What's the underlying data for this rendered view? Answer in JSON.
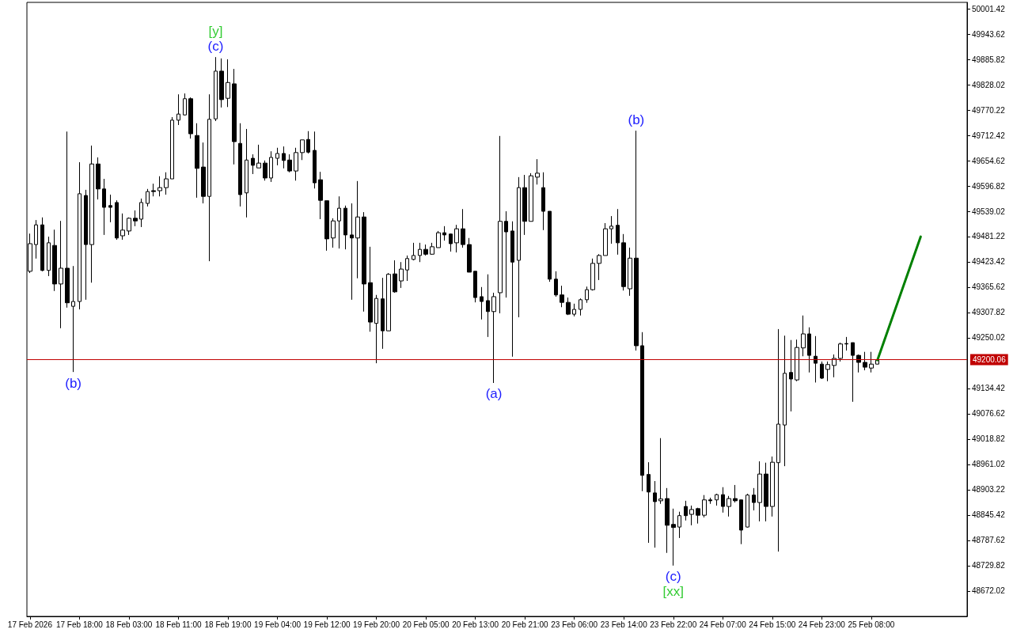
{
  "chart_data": {
    "type": "candlestick",
    "categories": [
      "17 Feb 2026",
      null,
      null,
      null,
      null,
      null,
      null,
      null,
      "17 Feb 18:00",
      null,
      null,
      null,
      null,
      null,
      null,
      null,
      "18 Feb 03:00",
      null,
      null,
      null,
      null,
      null,
      null,
      null,
      "18 Feb 11:00",
      null,
      null,
      null,
      null,
      null,
      null,
      null,
      "18 Feb 19:00",
      null,
      null,
      null,
      null,
      null,
      null,
      null,
      "19 Feb 04:00",
      null,
      null,
      null,
      null,
      null,
      null,
      null,
      "19 Feb 12:00",
      null,
      null,
      null,
      null,
      null,
      null,
      null,
      "19 Feb 20:00",
      null,
      null,
      null,
      null,
      null,
      null,
      null,
      "20 Feb 05:00",
      null,
      null,
      null,
      null,
      null,
      null,
      null,
      "20 Feb 13:00",
      null,
      null,
      null,
      null,
      null,
      null,
      null,
      "20 Feb 21:00",
      null,
      null,
      null,
      null,
      null,
      null,
      null,
      "23 Feb 06:00",
      null,
      null,
      null,
      null,
      null,
      null,
      null,
      "23 Feb 14:00",
      null,
      null,
      null,
      null,
      null,
      null,
      null,
      "23 Feb 22:00",
      null,
      null,
      null,
      null,
      null,
      null,
      null,
      "24 Feb 07:00",
      null,
      null,
      null,
      null,
      null,
      null,
      null,
      "24 Feb 15:00",
      null,
      null,
      null,
      null,
      null,
      null,
      null,
      "24 Feb 23:00",
      null,
      null,
      null,
      null,
      null,
      null,
      null,
      "25 Feb 08:00",
      null,
      null,
      null,
      null,
      null,
      null,
      null,
      null,
      null,
      null,
      null,
      null,
      null,
      null,
      null
    ],
    "color": "#000000",
    "ohlc": [
      [
        49402,
        49488,
        49398,
        49465
      ],
      [
        49463,
        49519,
        49431,
        49508
      ],
      [
        49508,
        49525,
        49402,
        49404
      ],
      [
        49404,
        49481,
        49391,
        49467
      ],
      [
        49461,
        49497,
        49357,
        49373
      ],
      [
        49373,
        49517,
        49272,
        49409
      ],
      [
        49409,
        49721,
        49319,
        49330
      ],
      [
        49322,
        49414,
        49172,
        49333
      ],
      [
        49333,
        49651,
        49315,
        49579
      ],
      [
        49575,
        49588,
        49337,
        49463
      ],
      [
        49463,
        49689,
        49376,
        49647
      ],
      [
        49647,
        49662,
        49566,
        49590
      ],
      [
        49590,
        49613,
        49485,
        49548
      ],
      [
        49552,
        49577,
        49514,
        49548
      ],
      [
        49559,
        49564,
        49474,
        49478
      ],
      [
        49483,
        49534,
        49474,
        49496
      ],
      [
        49494,
        49525,
        49485,
        49523
      ],
      [
        49523,
        49541,
        49505,
        49517
      ],
      [
        49521,
        49568,
        49503,
        49559
      ],
      [
        49557,
        49590,
        49550,
        49584
      ],
      [
        49586,
        49602,
        49573,
        49584
      ],
      [
        49586,
        49619,
        49573,
        49593
      ],
      [
        49593,
        49628,
        49577,
        49613
      ],
      [
        49613,
        49754,
        49613,
        49747
      ],
      [
        49747,
        49806,
        49736,
        49761
      ],
      [
        49759,
        49808,
        49758,
        49796
      ],
      [
        49796,
        49799,
        49705,
        49716
      ],
      [
        49712,
        49740,
        49570,
        49637
      ],
      [
        49640,
        49696,
        49557,
        49573
      ],
      [
        49573,
        49806,
        49425,
        49749
      ],
      [
        49750,
        49891,
        49745,
        49859
      ],
      [
        49859,
        49888,
        49776,
        49794
      ],
      [
        49797,
        49886,
        49777,
        49833
      ],
      [
        49830,
        49864,
        49646,
        49698
      ],
      [
        49694,
        49740,
        49550,
        49577
      ],
      [
        49581,
        49727,
        49525,
        49656
      ],
      [
        49660,
        49669,
        49624,
        49644
      ],
      [
        49638,
        49691,
        49638,
        49649
      ],
      [
        49649,
        49655,
        49609,
        49615
      ],
      [
        49615,
        49676,
        49606,
        49662
      ],
      [
        49660,
        49684,
        49644,
        49671
      ],
      [
        49671,
        49687,
        49637,
        49655
      ],
      [
        49656,
        49669,
        49628,
        49631
      ],
      [
        49631,
        49684,
        49609,
        49673
      ],
      [
        49673,
        49702,
        49656,
        49702
      ],
      [
        49703,
        49722,
        49671,
        49674
      ],
      [
        49678,
        49721,
        49591,
        49604
      ],
      [
        49611,
        49629,
        49521,
        49564
      ],
      [
        49563,
        49563,
        49449,
        49476
      ],
      [
        49478,
        49523,
        49456,
        49517
      ],
      [
        49517,
        49573,
        49454,
        49546
      ],
      [
        49546,
        49552,
        49452,
        49485
      ],
      [
        49485,
        49557,
        49337,
        49478
      ],
      [
        49478,
        49608,
        49386,
        49526
      ],
      [
        49526,
        49537,
        49310,
        49373
      ],
      [
        49376,
        49458,
        49264,
        49286
      ],
      [
        49283,
        49348,
        49192,
        49340
      ],
      [
        49339,
        49387,
        49225,
        49266
      ],
      [
        49266,
        49398,
        49266,
        49395
      ],
      [
        49396,
        49427,
        49353,
        49355
      ],
      [
        49380,
        49423,
        49364,
        49407
      ],
      [
        49405,
        49438,
        49380,
        49431
      ],
      [
        49429,
        49467,
        49427,
        49438
      ],
      [
        49438,
        49467,
        49423,
        49452
      ],
      [
        49452,
        49463,
        49438,
        49441
      ],
      [
        49441,
        49467,
        49440,
        49458
      ],
      [
        49456,
        49494,
        49456,
        49490
      ],
      [
        49490,
        49505,
        49472,
        49485
      ],
      [
        49487,
        49488,
        49447,
        49465
      ],
      [
        49467,
        49508,
        49445,
        49499
      ],
      [
        49499,
        49544,
        49456,
        49463
      ],
      [
        49463,
        49478,
        49400,
        49400
      ],
      [
        49402,
        49402,
        49331,
        49342
      ],
      [
        49344,
        49366,
        49292,
        49333
      ],
      [
        49335,
        49395,
        49252,
        49310
      ],
      [
        49310,
        49353,
        49147,
        49344
      ],
      [
        49353,
        49711,
        49306,
        49516
      ],
      [
        49516,
        49539,
        49342,
        49492
      ],
      [
        49494,
        49516,
        49207,
        49423
      ],
      [
        49427,
        49617,
        49297,
        49593
      ],
      [
        49593,
        49622,
        49485,
        49516
      ],
      [
        49516,
        49626,
        49516,
        49620
      ],
      [
        49617,
        49658,
        49600,
        49626
      ],
      [
        49593,
        49628,
        49496,
        49539
      ],
      [
        49539,
        49539,
        49378,
        49384
      ],
      [
        49384,
        49402,
        49344,
        49348
      ],
      [
        49348,
        49369,
        49320,
        49331
      ],
      [
        49331,
        49342,
        49302,
        49304
      ],
      [
        49304,
        49328,
        49299,
        49315
      ],
      [
        49315,
        49340,
        49301,
        49337
      ],
      [
        49337,
        49367,
        49330,
        49360
      ],
      [
        49360,
        49431,
        49358,
        49420
      ],
      [
        49420,
        49441,
        49382,
        49438
      ],
      [
        49438,
        49512,
        49438,
        49499
      ],
      [
        49499,
        49528,
        49465,
        49505
      ],
      [
        49507,
        49544,
        49440,
        49467
      ],
      [
        49467,
        49487,
        49358,
        49367
      ],
      [
        49362,
        49456,
        49346,
        49432
      ],
      [
        49432,
        49723,
        49221,
        49232
      ],
      [
        49232,
        49263,
        48900,
        48936
      ],
      [
        48938,
        48966,
        48782,
        48898
      ],
      [
        48896,
        48923,
        48771,
        48876
      ],
      [
        48878,
        49021,
        48871,
        48882
      ],
      [
        48883,
        48907,
        48759,
        48822
      ],
      [
        48824,
        48860,
        48730,
        48817
      ],
      [
        48818,
        48853,
        48793,
        48844
      ],
      [
        48865,
        48878,
        48833,
        48844
      ],
      [
        48847,
        48867,
        48822,
        48858
      ],
      [
        48860,
        48862,
        48826,
        48845
      ],
      [
        48845,
        48891,
        48840,
        48880
      ],
      [
        48880,
        48885,
        48871,
        48878
      ],
      [
        48880,
        48894,
        48867,
        48892
      ],
      [
        48892,
        48909,
        48851,
        48865
      ],
      [
        48865,
        48889,
        48842,
        48883
      ],
      [
        48883,
        48914,
        48874,
        48878
      ],
      [
        48880,
        48880,
        48779,
        48811
      ],
      [
        48818,
        48894,
        48817,
        48891
      ],
      [
        48891,
        48907,
        48856,
        48874
      ],
      [
        48874,
        48968,
        48831,
        48939
      ],
      [
        48939,
        48965,
        48831,
        48865
      ],
      [
        48865,
        48979,
        48842,
        48966
      ],
      [
        48965,
        49270,
        48762,
        49053
      ],
      [
        49051,
        49255,
        48957,
        49169
      ],
      [
        49171,
        49245,
        49082,
        49156
      ],
      [
        49154,
        49246,
        49151,
        49228
      ],
      [
        49227,
        49301,
        49208,
        49259
      ],
      [
        49259,
        49274,
        49171,
        49210
      ],
      [
        49208,
        49254,
        49148,
        49192
      ],
      [
        49190,
        49196,
        49156,
        49158
      ],
      [
        49178,
        49196,
        49151,
        49189
      ],
      [
        49187,
        49212,
        49160,
        49203
      ],
      [
        49203,
        49239,
        49196,
        49236
      ],
      [
        49237,
        49252,
        49221,
        49236
      ],
      [
        49239,
        49239,
        49104,
        49210
      ],
      [
        49210,
        49212,
        49171,
        49194
      ],
      [
        49194,
        49218,
        49176,
        49183
      ],
      [
        49181,
        49218,
        49171,
        49190
      ],
      [
        49190,
        49199,
        49190,
        49199
      ],
      null,
      null,
      null,
      null,
      null,
      null,
      null,
      null,
      null,
      null,
      null,
      null,
      null,
      null
    ],
    "series": [
      {
        "type": "line",
        "color": "#008000",
        "values": [
          null,
          null,
          null,
          null,
          null,
          null,
          null,
          null,
          null,
          null,
          null,
          null,
          null,
          null,
          null,
          null,
          null,
          null,
          null,
          null,
          null,
          null,
          null,
          null,
          null,
          null,
          null,
          null,
          null,
          null,
          null,
          null,
          null,
          null,
          null,
          null,
          null,
          null,
          null,
          null,
          null,
          null,
          null,
          null,
          null,
          null,
          null,
          null,
          null,
          null,
          null,
          null,
          null,
          null,
          null,
          null,
          null,
          null,
          null,
          null,
          null,
          null,
          null,
          null,
          null,
          null,
          null,
          null,
          null,
          null,
          null,
          null,
          null,
          null,
          null,
          null,
          null,
          null,
          null,
          null,
          null,
          null,
          null,
          null,
          null,
          null,
          null,
          null,
          null,
          null,
          null,
          null,
          null,
          null,
          null,
          null,
          null,
          null,
          null,
          null,
          null,
          null,
          null,
          null,
          null,
          null,
          null,
          null,
          null,
          null,
          null,
          null,
          null,
          null,
          null,
          null,
          null,
          null,
          null,
          null,
          null,
          null,
          null,
          null,
          null,
          null,
          null,
          null,
          null,
          null,
          null,
          null,
          null,
          null,
          null,
          null,
          null,
          49199,
          null,
          null,
          null,
          null,
          null,
          null,
          49481,
          null,
          null,
          null,
          null,
          null,
          null,
          null
        ]
      }
    ],
    "ylim": [
      48614,
      50016
    ],
    "yticks": [
      50001.42,
      49943.62,
      49885.82,
      49828.02,
      49770.22,
      49712.42,
      49654.62,
      49596.82,
      49539.02,
      49481.22,
      49423.42,
      49365.62,
      49307.82,
      49250.02,
      49134.42,
      49076.62,
      49018.82,
      48961.02,
      48903.22,
      48845.42,
      48787.62,
      48729.82,
      48672.02
    ],
    "ref_lines": [
      {
        "axis": "y",
        "value": 49200.06,
        "label": "49200.06",
        "color": "#c00000"
      }
    ],
    "annotations": [
      "(b)",
      "(c)",
      "[y]",
      "(a)",
      "(b)",
      "(c)",
      "[xx]"
    ],
    "grid": false
  }
}
